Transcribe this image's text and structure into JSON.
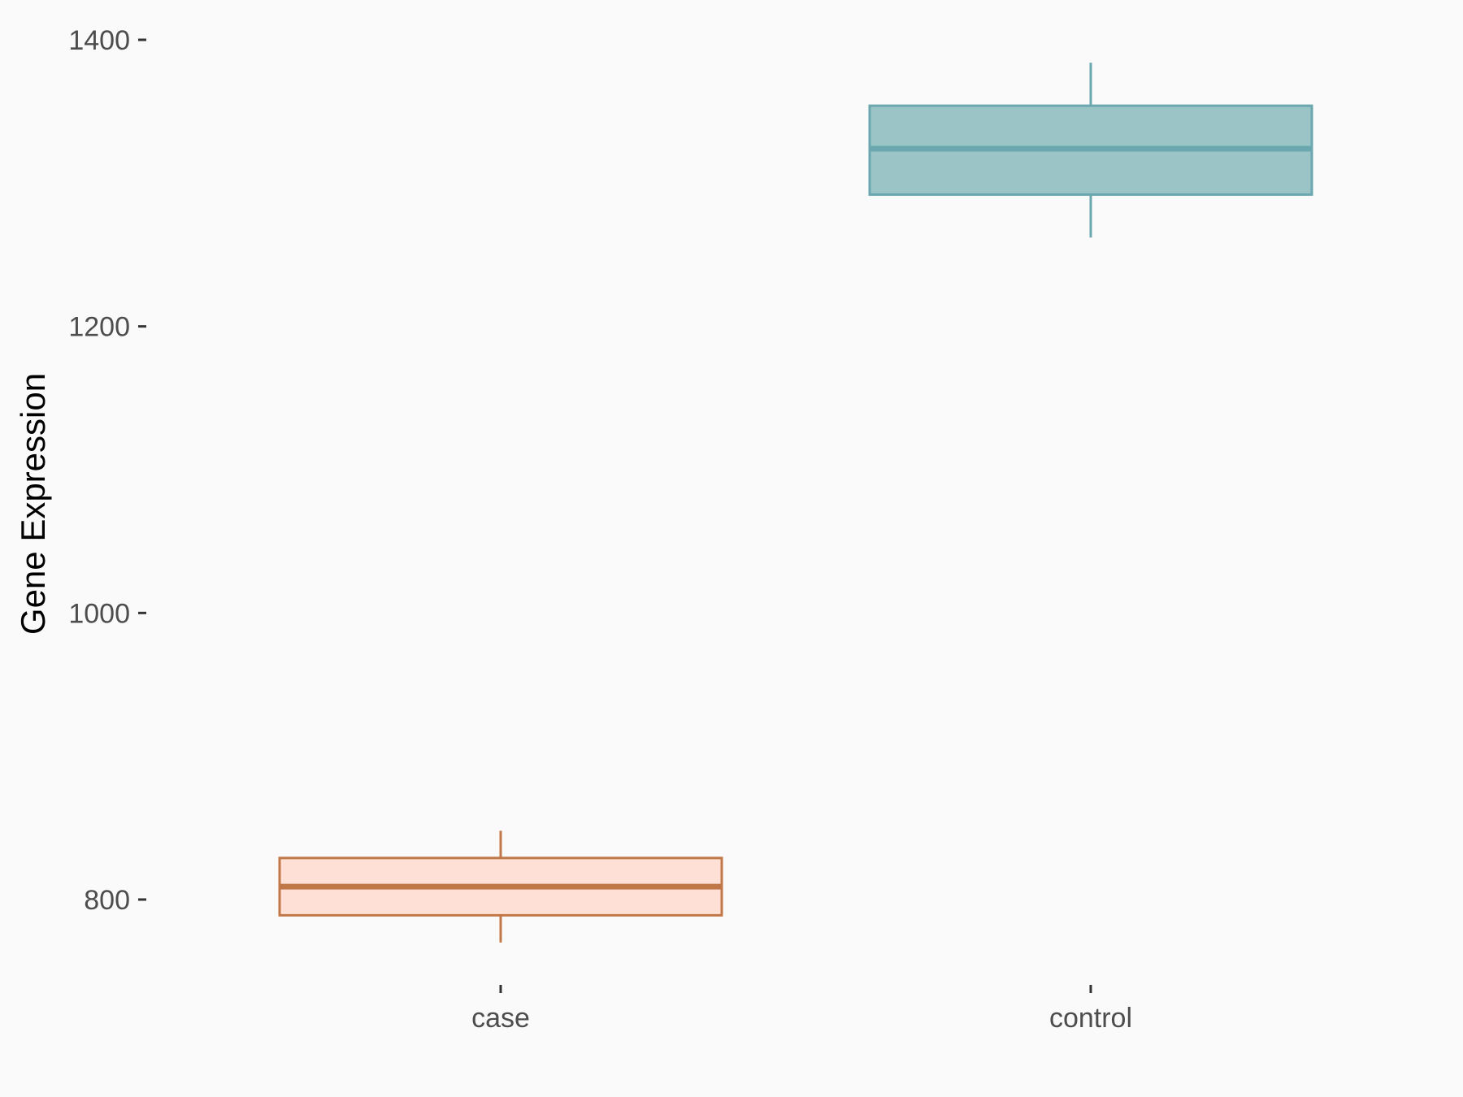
{
  "chart_data": {
    "type": "boxplot",
    "title": "",
    "xlabel": "",
    "ylabel": "Gene Expression",
    "categories": [
      "case",
      "control"
    ],
    "yticks": [
      800,
      1000,
      1200,
      1400
    ],
    "ylim": [
      720,
      1410
    ],
    "grid": false,
    "legend": "none",
    "boxes": [
      {
        "category": "case",
        "whisker_low": 770,
        "q1": 789,
        "median": 809,
        "q3": 829,
        "whisker_high": 848,
        "fill": "#ffe0d6",
        "stroke": "#c07848"
      },
      {
        "category": "control",
        "whisker_low": 1262,
        "q1": 1292,
        "median": 1324,
        "q3": 1354,
        "whisker_high": 1384,
        "fill": "#9bc4c7",
        "stroke": "#6aa7ae"
      }
    ]
  }
}
